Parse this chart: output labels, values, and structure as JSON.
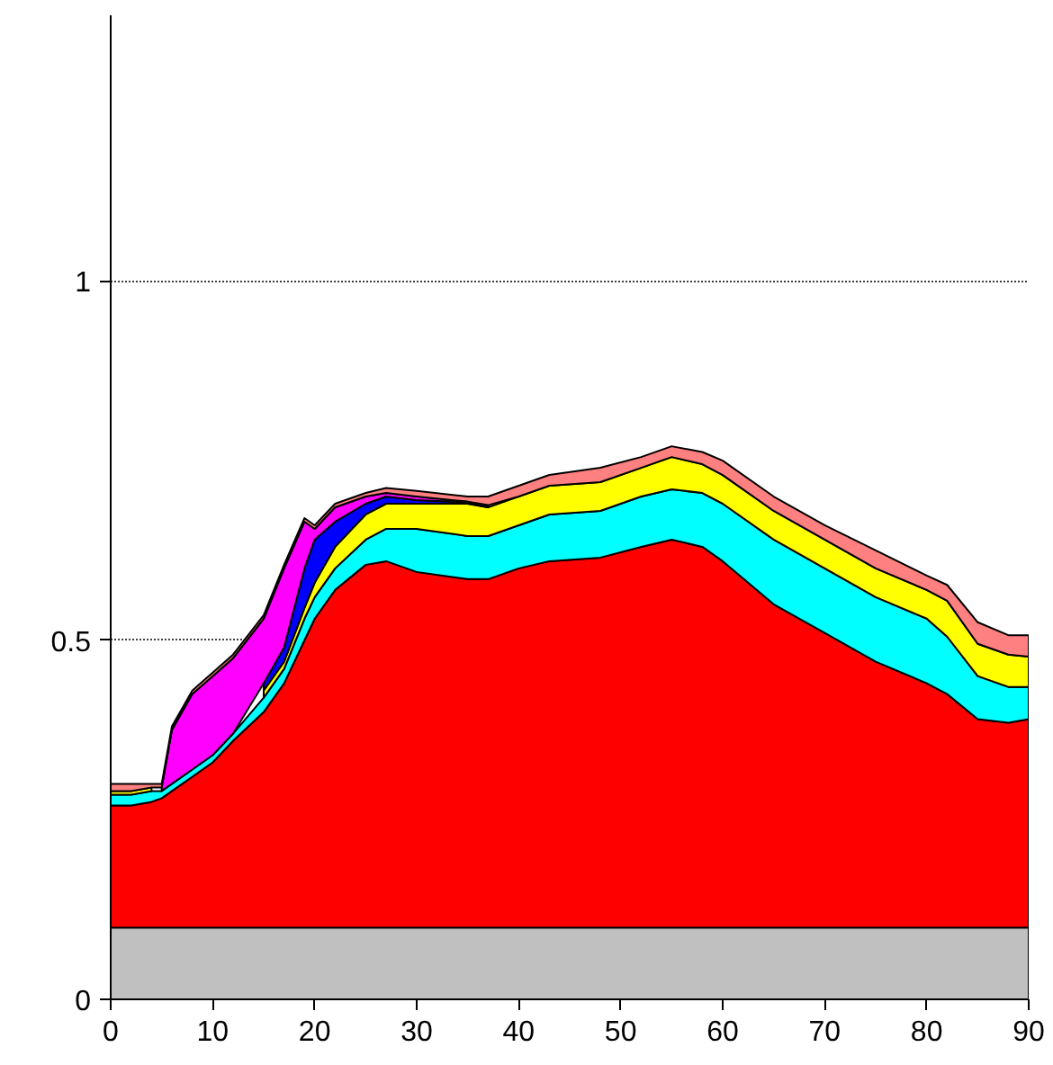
{
  "chart_data": {
    "type": "area",
    "stacked": true,
    "x": [
      0,
      2,
      4,
      5,
      6,
      8,
      10,
      12,
      15,
      17,
      19,
      20,
      22,
      25,
      27,
      30,
      35,
      37,
      40,
      43,
      48,
      52,
      55,
      58,
      60,
      65,
      70,
      75,
      80,
      82,
      85,
      88,
      90
    ],
    "series": [
      {
        "color": "#c0c0c0",
        "values": [
          0.1,
          0.1,
          0.1,
          0.1,
          0.1,
          0.1,
          0.1,
          0.1,
          0.1,
          0.1,
          0.1,
          0.1,
          0.1,
          0.1,
          0.1,
          0.1,
          0.1,
          0.1,
          0.1,
          0.1,
          0.1,
          0.1,
          0.1,
          0.1,
          0.1,
          0.1,
          0.1,
          0.1,
          0.1,
          0.1,
          0.1,
          0.1,
          0.1
        ]
      },
      {
        "color": "#ff0000",
        "values": [
          0.17,
          0.17,
          0.175,
          0.18,
          0.19,
          0.21,
          0.23,
          0.26,
          0.3,
          0.34,
          0.4,
          0.43,
          0.47,
          0.505,
          0.51,
          0.495,
          0.485,
          0.485,
          0.5,
          0.51,
          0.515,
          0.53,
          0.54,
          0.53,
          0.51,
          0.45,
          0.41,
          0.37,
          0.34,
          0.325,
          0.29,
          0.285,
          0.29
        ]
      },
      {
        "color": "#00ffff",
        "values": [
          0.015,
          0.015,
          0.015,
          0.01,
          0.01,
          0.01,
          0.01,
          0.01,
          0.02,
          0.02,
          0.03,
          0.03,
          0.03,
          0.035,
          0.045,
          0.06,
          0.06,
          0.06,
          0.06,
          0.065,
          0.065,
          0.07,
          0.07,
          0.075,
          0.08,
          0.09,
          0.09,
          0.09,
          0.09,
          0.08,
          0.06,
          0.05,
          0.045
        ]
      },
      {
        "color": "#ffff00",
        "values": [
          0.005,
          0.005,
          0.005,
          null,
          null,
          null,
          null,
          null,
          0.01,
          0.01,
          0.015,
          0.02,
          0.03,
          0.035,
          0.035,
          0.035,
          0.045,
          0.04,
          0.04,
          0.04,
          0.04,
          0.04,
          0.045,
          0.04,
          0.04,
          0.04,
          0.04,
          0.04,
          0.04,
          0.05,
          0.045,
          0.045,
          0.042
        ]
      },
      {
        "color": "#0000ff",
        "values": [
          null,
          null,
          null,
          null,
          null,
          null,
          null,
          null,
          0.01,
          0.02,
          0.055,
          0.06,
          0.035,
          0.015,
          0.01,
          0.005,
          0.002,
          0.002,
          null,
          null,
          null,
          null,
          null,
          null,
          null,
          null,
          null,
          null,
          null,
          null,
          null,
          null,
          null
        ]
      },
      {
        "color": "#ff00ff",
        "values": [
          null,
          null,
          null,
          0.005,
          0.075,
          0.105,
          0.11,
          0.105,
          0.09,
          0.11,
          0.065,
          0.015,
          0.02,
          0.01,
          0.005,
          0.005,
          0.001,
          0.001,
          null,
          null,
          null,
          null,
          null,
          null,
          null,
          null,
          null,
          null,
          null,
          null,
          null,
          null,
          null
        ]
      },
      {
        "color": "#ff8080",
        "values": [
          0.01,
          0.01,
          0.005,
          0.005,
          0.005,
          0.005,
          0.005,
          0.005,
          0.005,
          0.005,
          0.005,
          0.005,
          0.005,
          0.005,
          0.007,
          0.008,
          0.007,
          0.012,
          0.015,
          0.015,
          0.02,
          0.015,
          0.015,
          0.017,
          0.02,
          0.02,
          0.02,
          0.025,
          0.02,
          0.022,
          0.03,
          0.027,
          0.03
        ]
      }
    ],
    "xlim": [
      0,
      90
    ],
    "xticks": [
      0,
      10,
      20,
      30,
      40,
      50,
      60,
      70,
      80,
      90
    ],
    "ylim": [
      0,
      1.37
    ],
    "yticks": [
      0,
      0.5,
      1
    ],
    "grid": "y"
  }
}
